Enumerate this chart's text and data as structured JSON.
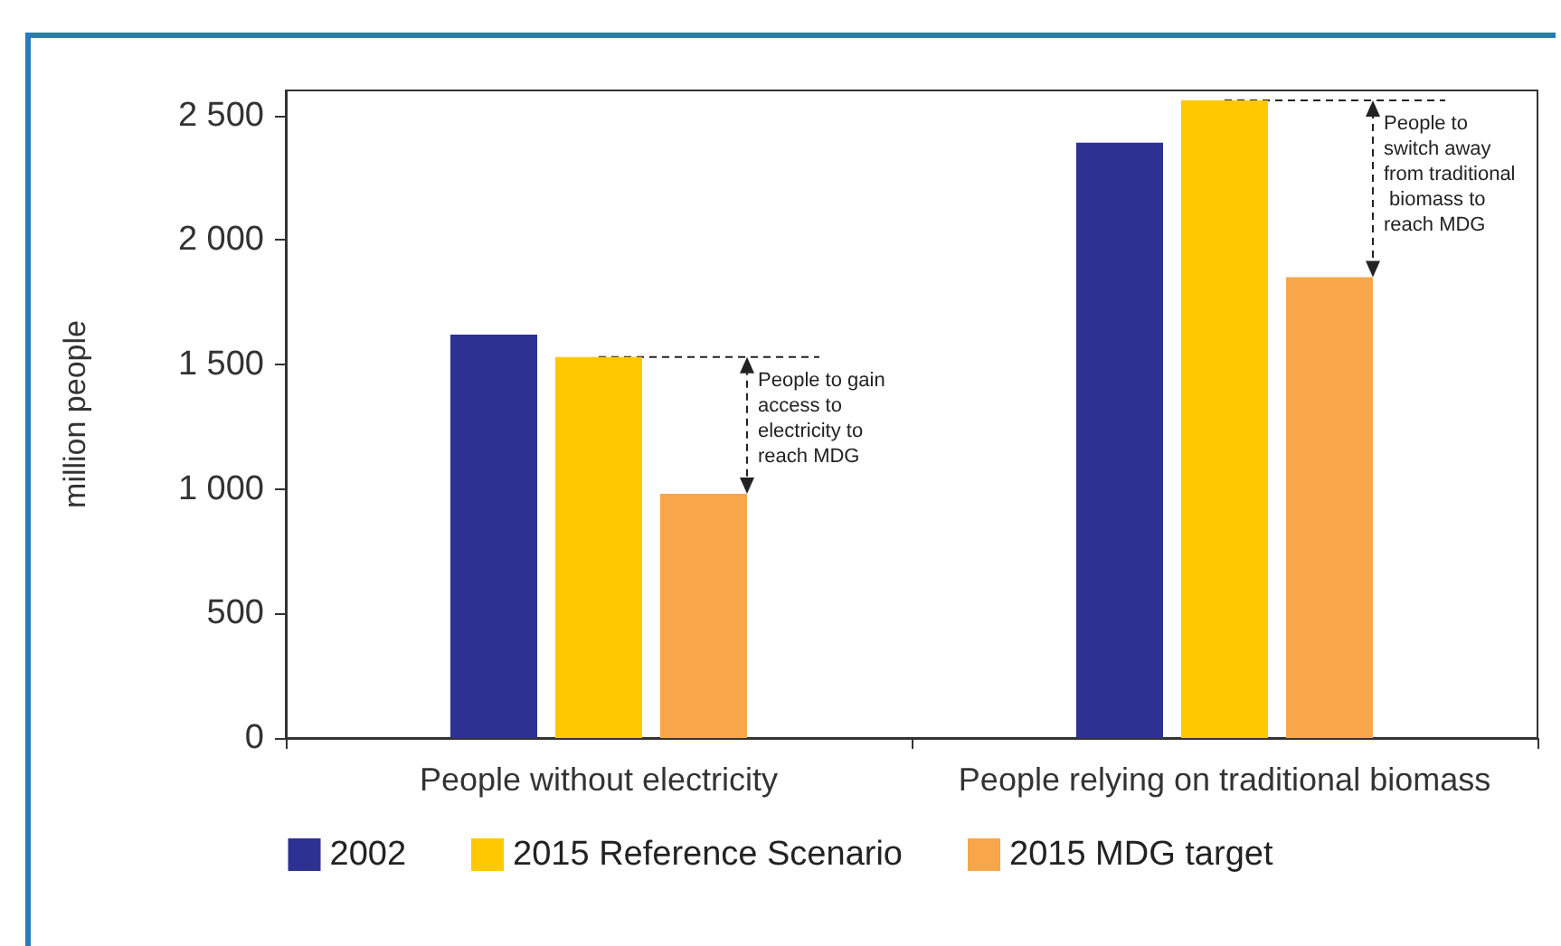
{
  "chart_data": {
    "type": "bar",
    "ylabel": "million people",
    "categories": [
      "People without electricity",
      "People relying on traditional biomass"
    ],
    "series": [
      {
        "name": "2002",
        "color": "#2e3192",
        "values": [
          1620,
          2390
        ]
      },
      {
        "name": "2015 Reference Scenario",
        "color": "#ffc800",
        "values": [
          1530,
          2560
        ]
      },
      {
        "name": "2015 MDG target",
        "color": "#f7a74a",
        "values": [
          980,
          1850
        ]
      }
    ],
    "ylim": [
      0,
      2600
    ],
    "yticks": [
      {
        "value": 0,
        "label": "0"
      },
      {
        "value": 500,
        "label": "500"
      },
      {
        "value": 1000,
        "label": "1 000"
      },
      {
        "value": 1500,
        "label": "1 500"
      },
      {
        "value": 2000,
        "label": "2 000"
      },
      {
        "value": 2500,
        "label": "2 500"
      }
    ],
    "grid": false,
    "legend": "bottom",
    "annotations": [
      {
        "text": "People to gain access to electricity to reach MDG",
        "x": "People without electricity",
        "y": 1530
      },
      {
        "text": "People to switch away from traditional biomass to reach MDG",
        "x": "People relying on traditional biomass",
        "y": 2560
      }
    ]
  }
}
